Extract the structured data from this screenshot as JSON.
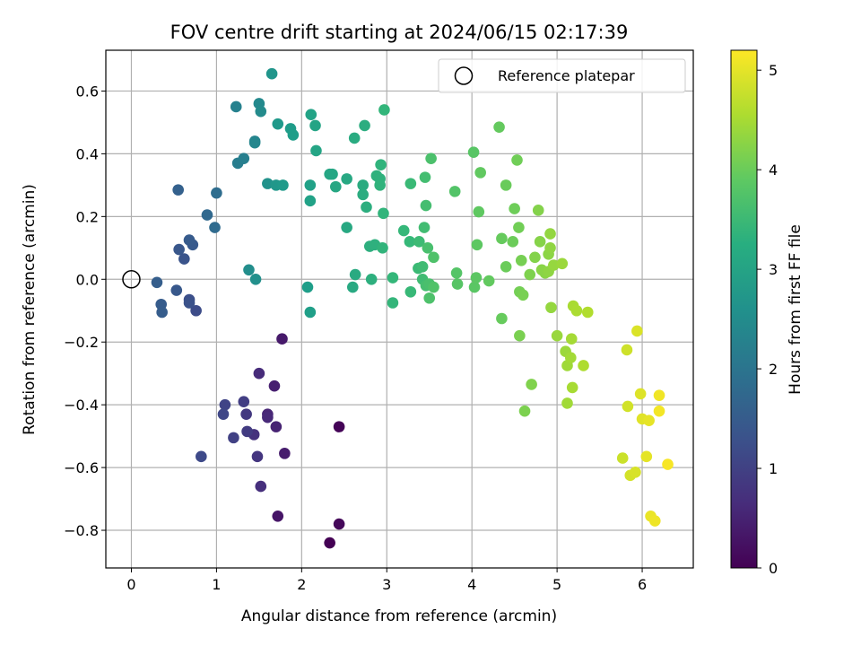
{
  "chart_data": {
    "type": "scatter",
    "title": "FOV centre drift starting at 2024/06/15 02:17:39",
    "xlabel": "Angular distance from reference (arcmin)",
    "ylabel": "Rotation from reference (arcmin)",
    "xlim": [
      -0.3,
      6.6
    ],
    "ylim": [
      -0.92,
      0.73
    ],
    "xticks": [
      0,
      1,
      2,
      3,
      4,
      5,
      6
    ],
    "xtick_labels": [
      "0",
      "1",
      "2",
      "3",
      "4",
      "5",
      "6"
    ],
    "yticks": [
      -0.8,
      -0.6,
      -0.4,
      -0.2,
      0.0,
      0.2,
      0.4,
      0.6
    ],
    "ytick_labels": [
      "−0.8",
      "−0.6",
      "−0.4",
      "−0.2",
      "0.0",
      "0.2",
      "0.4",
      "0.6"
    ],
    "grid": true,
    "legend": {
      "position": "top-right",
      "label": "Reference platepar"
    },
    "reference_point": {
      "x": 0,
      "y": 0
    },
    "colorbar": {
      "label": "Hours from first FF file",
      "colormap": "viridis",
      "range": [
        0,
        5.2
      ],
      "ticks": [
        0,
        1,
        2,
        3,
        4,
        5
      ],
      "tick_labels": [
        "0",
        "1",
        "2",
        "3",
        "4",
        "5"
      ]
    },
    "points": [
      [
        2.33,
        -0.84,
        0.0
      ],
      [
        2.44,
        -0.47,
        0.05
      ],
      [
        2.44,
        -0.78,
        0.1
      ],
      [
        1.72,
        -0.755,
        0.3
      ],
      [
        1.77,
        -0.19,
        0.35
      ],
      [
        1.8,
        -0.555,
        0.4
      ],
      [
        1.68,
        -0.34,
        0.45
      ],
      [
        1.7,
        -0.47,
        0.5
      ],
      [
        1.6,
        -0.43,
        0.55
      ],
      [
        1.6,
        -0.44,
        0.6
      ],
      [
        1.5,
        -0.3,
        0.65
      ],
      [
        1.52,
        -0.66,
        0.7
      ],
      [
        1.44,
        -0.495,
        0.75
      ],
      [
        1.48,
        -0.565,
        0.8
      ],
      [
        1.35,
        -0.43,
        0.85
      ],
      [
        1.36,
        -0.485,
        0.9
      ],
      [
        1.32,
        -0.39,
        0.95
      ],
      [
        1.2,
        -0.505,
        1.0
      ],
      [
        1.1,
        -0.4,
        1.05
      ],
      [
        1.08,
        -0.43,
        1.1
      ],
      [
        0.82,
        -0.565,
        1.15
      ],
      [
        0.76,
        -0.1,
        1.2
      ],
      [
        0.68,
        -0.065,
        1.25
      ],
      [
        0.68,
        -0.075,
        1.3
      ],
      [
        0.62,
        0.065,
        1.35
      ],
      [
        0.56,
        0.095,
        1.4
      ],
      [
        0.53,
        -0.035,
        1.42
      ],
      [
        0.72,
        0.11,
        1.45
      ],
      [
        0.68,
        0.125,
        1.48
      ],
      [
        0.35,
        -0.08,
        1.5
      ],
      [
        0.36,
        -0.105,
        1.52
      ],
      [
        0.3,
        -0.01,
        1.55
      ],
      [
        0.55,
        0.285,
        1.6
      ],
      [
        0.89,
        0.205,
        1.75
      ],
      [
        0.98,
        0.165,
        1.8
      ],
      [
        1.0,
        0.275,
        1.85
      ],
      [
        1.25,
        0.37,
        2.2
      ],
      [
        1.32,
        0.385,
        2.25
      ],
      [
        1.23,
        0.55,
        2.3
      ],
      [
        1.45,
        0.44,
        2.35
      ],
      [
        1.45,
        0.435,
        2.4
      ],
      [
        1.5,
        0.56,
        2.45
      ],
      [
        1.52,
        0.535,
        2.5
      ],
      [
        1.38,
        0.03,
        2.55
      ],
      [
        1.46,
        0.0,
        2.6
      ],
      [
        1.6,
        0.305,
        2.65
      ],
      [
        1.65,
        0.655,
        2.7
      ],
      [
        1.7,
        0.3,
        2.75
      ],
      [
        1.72,
        0.495,
        2.78
      ],
      [
        1.78,
        0.3,
        2.8
      ],
      [
        1.87,
        0.48,
        2.85
      ],
      [
        1.9,
        0.46,
        2.88
      ],
      [
        2.07,
        -0.025,
        2.9
      ],
      [
        2.1,
        -0.105,
        2.92
      ],
      [
        2.1,
        0.3,
        2.95
      ],
      [
        2.1,
        0.25,
        2.97
      ],
      [
        2.11,
        0.525,
        3.0
      ],
      [
        2.16,
        0.49,
        3.02
      ],
      [
        2.17,
        0.41,
        3.05
      ],
      [
        2.33,
        0.335,
        3.07
      ],
      [
        2.36,
        0.335,
        3.08
      ],
      [
        2.4,
        0.295,
        3.1
      ],
      [
        2.53,
        0.32,
        3.12
      ],
      [
        2.53,
        0.165,
        3.13
      ],
      [
        2.6,
        -0.025,
        3.15
      ],
      [
        2.63,
        0.015,
        3.17
      ],
      [
        2.62,
        0.45,
        3.18
      ],
      [
        2.72,
        0.3,
        3.2
      ],
      [
        2.72,
        0.27,
        3.22
      ],
      [
        2.74,
        0.49,
        3.23
      ],
      [
        2.76,
        0.23,
        3.25
      ],
      [
        2.8,
        0.105,
        3.27
      ],
      [
        2.82,
        0.0,
        3.28
      ],
      [
        2.86,
        0.11,
        3.3
      ],
      [
        2.88,
        0.33,
        3.32
      ],
      [
        2.92,
        0.32,
        3.33
      ],
      [
        2.92,
        0.3,
        3.35
      ],
      [
        2.93,
        0.365,
        3.37
      ],
      [
        2.95,
        0.1,
        3.38
      ],
      [
        2.96,
        0.21,
        3.4
      ],
      [
        2.97,
        0.54,
        3.42
      ],
      [
        3.07,
        -0.075,
        3.43
      ],
      [
        3.07,
        0.005,
        3.45
      ],
      [
        3.2,
        0.155,
        3.47
      ],
      [
        3.27,
        0.12,
        3.48
      ],
      [
        3.28,
        -0.04,
        3.5
      ],
      [
        3.28,
        0.305,
        3.52
      ],
      [
        3.37,
        0.035,
        3.53
      ],
      [
        3.38,
        0.12,
        3.55
      ],
      [
        3.42,
        0.04,
        3.57
      ],
      [
        3.42,
        0.0,
        3.58
      ],
      [
        3.44,
        0.165,
        3.6
      ],
      [
        3.45,
        0.325,
        3.62
      ],
      [
        3.46,
        0.235,
        3.63
      ],
      [
        3.46,
        -0.02,
        3.65
      ],
      [
        3.48,
        0.1,
        3.67
      ],
      [
        3.5,
        -0.015,
        3.68
      ],
      [
        3.52,
        0.385,
        3.7
      ],
      [
        3.5,
        -0.06,
        3.72
      ],
      [
        3.55,
        0.07,
        3.73
      ],
      [
        3.55,
        -0.025,
        3.75
      ],
      [
        3.8,
        0.28,
        3.78
      ],
      [
        3.82,
        0.02,
        3.8
      ],
      [
        3.83,
        -0.015,
        3.82
      ],
      [
        4.02,
        0.405,
        3.83
      ],
      [
        4.03,
        -0.025,
        3.85
      ],
      [
        4.05,
        0.005,
        3.87
      ],
      [
        4.06,
        0.11,
        3.88
      ],
      [
        4.08,
        0.215,
        3.9
      ],
      [
        4.1,
        0.34,
        3.92
      ],
      [
        4.2,
        -0.005,
        3.93
      ],
      [
        4.32,
        0.485,
        3.95
      ],
      [
        4.35,
        0.13,
        3.97
      ],
      [
        4.35,
        -0.125,
        3.98
      ],
      [
        4.4,
        0.3,
        4.0
      ],
      [
        4.4,
        0.04,
        4.02
      ],
      [
        4.48,
        0.12,
        4.03
      ],
      [
        4.5,
        0.225,
        4.05
      ],
      [
        4.53,
        0.38,
        4.07
      ],
      [
        4.55,
        0.165,
        4.08
      ],
      [
        4.56,
        -0.04,
        4.1
      ],
      [
        4.58,
        0.06,
        4.12
      ],
      [
        4.6,
        -0.05,
        4.13
      ],
      [
        4.56,
        -0.18,
        4.15
      ],
      [
        4.62,
        -0.42,
        4.17
      ],
      [
        4.68,
        0.015,
        4.18
      ],
      [
        4.7,
        -0.335,
        4.2
      ],
      [
        4.74,
        0.07,
        4.22
      ],
      [
        4.78,
        0.22,
        4.23
      ],
      [
        4.8,
        0.12,
        4.25
      ],
      [
        4.82,
        0.03,
        4.27
      ],
      [
        4.86,
        0.02,
        4.28
      ],
      [
        4.9,
        0.08,
        4.3
      ],
      [
        4.9,
        0.025,
        4.32
      ],
      [
        4.92,
        0.1,
        4.33
      ],
      [
        4.92,
        0.145,
        4.35
      ],
      [
        4.93,
        -0.09,
        4.37
      ],
      [
        4.96,
        0.045,
        4.38
      ],
      [
        5.0,
        -0.18,
        4.4
      ],
      [
        5.06,
        0.05,
        4.42
      ],
      [
        5.1,
        -0.23,
        4.43
      ],
      [
        5.12,
        -0.275,
        4.45
      ],
      [
        5.12,
        -0.395,
        4.47
      ],
      [
        5.16,
        -0.25,
        4.48
      ],
      [
        5.17,
        -0.19,
        4.5
      ],
      [
        5.18,
        -0.345,
        4.52
      ],
      [
        5.19,
        -0.085,
        4.53
      ],
      [
        5.23,
        -0.1,
        4.55
      ],
      [
        5.31,
        -0.275,
        4.57
      ],
      [
        5.36,
        -0.105,
        4.6
      ],
      [
        5.77,
        -0.57,
        4.8
      ],
      [
        5.82,
        -0.225,
        4.82
      ],
      [
        5.83,
        -0.405,
        4.85
      ],
      [
        5.86,
        -0.625,
        4.87
      ],
      [
        5.92,
        -0.615,
        4.9
      ],
      [
        5.94,
        -0.165,
        4.92
      ],
      [
        5.98,
        -0.365,
        4.95
      ],
      [
        6.0,
        -0.445,
        4.97
      ],
      [
        6.05,
        -0.565,
        5.0
      ],
      [
        6.08,
        -0.45,
        5.02
      ],
      [
        6.1,
        -0.755,
        5.05
      ],
      [
        6.15,
        -0.77,
        5.08
      ],
      [
        6.2,
        -0.37,
        5.1
      ],
      [
        6.2,
        -0.42,
        5.12
      ],
      [
        6.3,
        -0.59,
        5.15
      ]
    ]
  }
}
